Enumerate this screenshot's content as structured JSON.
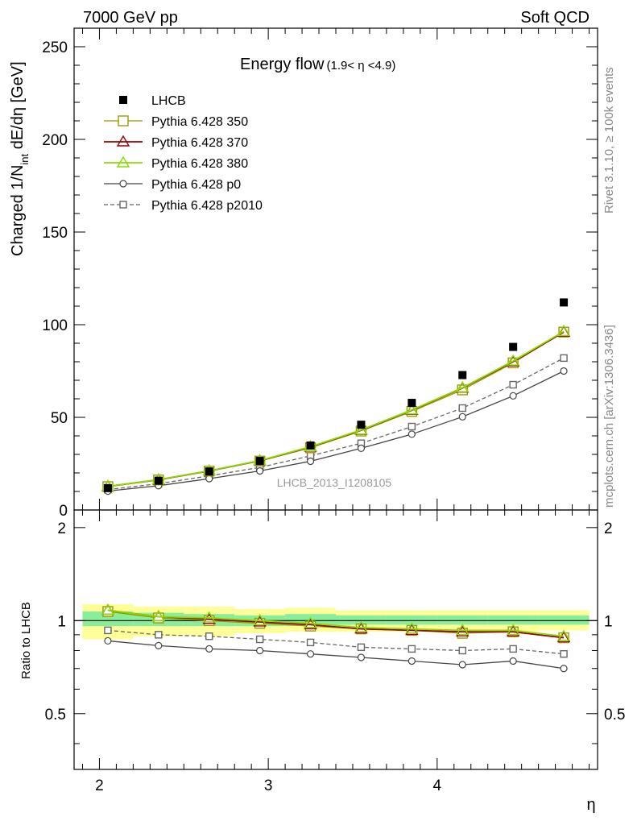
{
  "header": {
    "left": "7000 GeV pp",
    "right": "Soft QCD"
  },
  "side_labels": {
    "rivet": "Rivet 3.1.10, ≥ 100k events",
    "mcplots": "mcplots.cern.ch [arXiv:1306.3436]"
  },
  "chart_data": [
    {
      "type": "line",
      "title": "Energy flow",
      "title_suffix": "(1.9< η <4.9)",
      "ylabel": "Charged 1/N",
      "ylabel_sub": "int",
      "ylabel_tail": " dE/dη [GeV]",
      "xlabel": "",
      "analysis_label": "LHCB_2013_I1208105",
      "xlim": [
        1.85,
        4.95
      ],
      "ylim": [
        0,
        260
      ],
      "yticks": [
        0,
        50,
        100,
        150,
        200,
        250
      ],
      "ytick_labels": [
        "0",
        "50",
        "100",
        "150",
        "200",
        "250"
      ],
      "legend_position": "top-left",
      "x": [
        2.05,
        2.35,
        2.65,
        2.95,
        3.25,
        3.55,
        3.85,
        4.15,
        4.45,
        4.75
      ],
      "series": [
        {
          "name": "LHCB",
          "style": "data",
          "color": "#000000",
          "values": [
            11.8,
            15.8,
            20.8,
            26.5,
            34.8,
            46.0,
            57.8,
            72.8,
            88.0,
            112.0
          ]
        },
        {
          "name": "Pythia 6.428 350",
          "style": "square",
          "color": "#999900",
          "values": [
            12.6,
            16.2,
            21.0,
            26.4,
            33.6,
            42.6,
            53.2,
            64.8,
            79.4,
            96.0
          ]
        },
        {
          "name": "Pythia 6.428 370",
          "style": "triangle",
          "color": "#990000",
          "values": [
            12.7,
            16.3,
            21.1,
            26.6,
            34.0,
            43.0,
            53.8,
            65.8,
            80.0,
            96.0
          ]
        },
        {
          "name": "Pythia 6.428 380",
          "style": "triangle",
          "color": "#88dd00",
          "values": [
            12.8,
            16.4,
            21.2,
            26.7,
            34.2,
            43.2,
            54.0,
            66.0,
            80.4,
            96.4
          ]
        },
        {
          "name": "Pythia 6.428 p0",
          "style": "circle",
          "color": "#444444",
          "values": [
            10.2,
            13.1,
            16.9,
            21.1,
            26.3,
            33.3,
            40.9,
            50.3,
            61.6,
            75.0
          ]
        },
        {
          "name": "Pythia 6.428 p2010",
          "style": "dashed-square",
          "color": "#666666",
          "values": [
            11.0,
            14.2,
            18.4,
            23.0,
            29.2,
            36.0,
            45.0,
            55.0,
            67.6,
            82.0
          ]
        }
      ]
    },
    {
      "type": "line",
      "title": "",
      "ylabel": "Ratio to LHCB",
      "xlabel": "η",
      "xlim": [
        1.85,
        4.95
      ],
      "ylim": [
        0.33,
        2.28
      ],
      "xticks": [
        2,
        3,
        4
      ],
      "xtick_labels": [
        "2",
        "3",
        "4"
      ],
      "yticks": [
        0.5,
        1,
        2
      ],
      "ytick_labels": [
        "0.5",
        "1",
        "2"
      ],
      "x": [
        2.05,
        2.35,
        2.65,
        2.95,
        3.25,
        3.55,
        3.85,
        4.15,
        4.45,
        4.75
      ],
      "bin_edges": [
        1.9,
        2.2,
        2.5,
        2.8,
        3.1,
        3.4,
        3.7,
        4.0,
        4.3,
        4.6,
        4.9
      ],
      "band_total": [
        [
          0.87,
          1.13
        ],
        [
          0.89,
          1.11
        ],
        [
          0.89,
          1.11
        ],
        [
          0.91,
          1.09
        ],
        [
          0.92,
          1.1
        ],
        [
          0.92,
          1.08
        ],
        [
          0.92,
          1.08
        ],
        [
          0.92,
          1.08
        ],
        [
          0.92,
          1.08
        ],
        [
          0.93,
          1.08
        ]
      ],
      "band_stat": [
        [
          0.96,
          1.07
        ],
        [
          0.96,
          1.06
        ],
        [
          0.96,
          1.05
        ],
        [
          0.96,
          1.04
        ],
        [
          0.96,
          1.05
        ],
        [
          0.97,
          1.04
        ],
        [
          0.97,
          1.04
        ],
        [
          0.97,
          1.04
        ],
        [
          0.97,
          1.04
        ],
        [
          0.97,
          1.04
        ]
      ],
      "series": [
        {
          "name": "Pythia 6.428 350",
          "style": "square",
          "color": "#999900",
          "values": [
            1.07,
            1.02,
            1.0,
            0.98,
            0.96,
            0.94,
            0.93,
            0.91,
            0.92,
            0.88
          ]
        },
        {
          "name": "Pythia 6.428 370",
          "style": "triangle",
          "color": "#990000",
          "values": [
            1.08,
            1.03,
            1.01,
            0.99,
            0.97,
            0.94,
            0.93,
            0.92,
            0.92,
            0.88
          ]
        },
        {
          "name": "Pythia 6.428 380",
          "style": "triangle",
          "color": "#88dd00",
          "values": [
            1.08,
            1.03,
            1.02,
            1.0,
            0.98,
            0.95,
            0.94,
            0.93,
            0.93,
            0.89
          ]
        },
        {
          "name": "Pythia 6.428 p0",
          "style": "circle",
          "color": "#444444",
          "values": [
            0.86,
            0.83,
            0.81,
            0.8,
            0.78,
            0.76,
            0.74,
            0.72,
            0.74,
            0.7
          ]
        },
        {
          "name": "Pythia 6.428 p2010",
          "style": "dashed-square",
          "color": "#666666",
          "values": [
            0.93,
            0.9,
            0.89,
            0.87,
            0.85,
            0.82,
            0.81,
            0.8,
            0.81,
            0.78
          ]
        }
      ]
    }
  ]
}
